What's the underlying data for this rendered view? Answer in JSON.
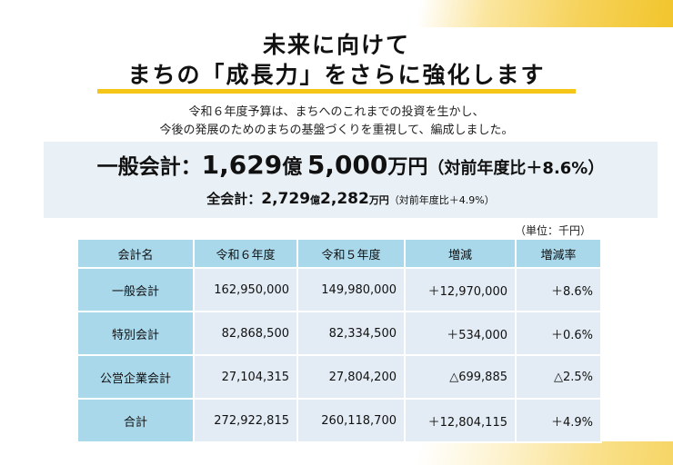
{
  "title": {
    "line1": "未来に向けて",
    "line2": "まちの「成長力」をさらに強化します"
  },
  "intro": {
    "line1": "令和６年度予算は、まちへのこれまでの投資を生かし、",
    "line2": "今後の発展のためのまちの基盤づくりを重視して、編成しました。"
  },
  "summary": {
    "general_label": "一般会計：",
    "general_oku": "1,629",
    "oku_unit": "億",
    "general_man": "5,000",
    "man_unit": "万円",
    "general_note": "（対前年度比＋8.6%）",
    "all_label": "全会計：",
    "all_oku": "2,729",
    "all_man": "2,282",
    "all_note": "（対前年度比＋4.9%）"
  },
  "table": {
    "unit_note": "（単位：千円）",
    "headers": [
      "会計名",
      "令和６年度",
      "令和５年度",
      "増減",
      "増減率"
    ],
    "rows": [
      [
        "一般会計",
        "162,950,000",
        "149,980,000",
        "＋12,970,000",
        "＋8.6%"
      ],
      [
        "特別会計",
        "82,868,500",
        "82,334,500",
        "＋534,000",
        "＋0.6%"
      ],
      [
        "公営企業会計",
        "27,104,315",
        "27,804,200",
        "△699,885",
        "△2.5%"
      ],
      [
        "合計",
        "272,922,815",
        "260,118,700",
        "＋12,804,115",
        "＋4.9%"
      ]
    ]
  },
  "colors": {
    "accent_yellow": "#f5c518",
    "header_blue": "#a9d8eb",
    "cell_gray": "#e3ecf4",
    "summary_bg": "#eaf1f6"
  }
}
